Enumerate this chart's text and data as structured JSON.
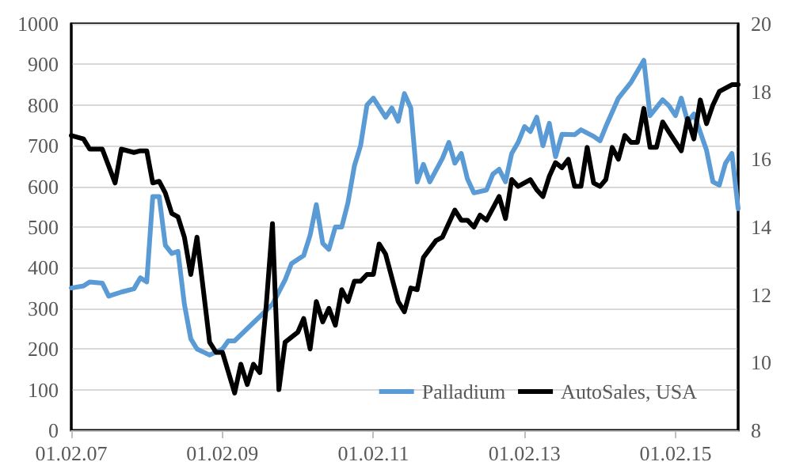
{
  "chart_data": {
    "type": "line",
    "xlim": [
      "2007-02",
      "2015-12"
    ],
    "xticks": [
      {
        "value": "2007-02",
        "label": "01.02.07"
      },
      {
        "value": "2009-02",
        "label": "01.02.09"
      },
      {
        "value": "2011-02",
        "label": "01.02.11"
      },
      {
        "value": "2013-02",
        "label": "01.02.13"
      },
      {
        "value": "2015-02",
        "label": "01.02.15"
      }
    ],
    "ylim": [
      0,
      1000
    ],
    "yticks": [
      0,
      100,
      200,
      300,
      400,
      500,
      600,
      700,
      800,
      900,
      1000
    ],
    "y2lim": [
      8,
      20
    ],
    "y2ticks": [
      8,
      10,
      12,
      14,
      16,
      18,
      20
    ],
    "grid": "y",
    "legend": "bottom right",
    "marker": "none",
    "line_style": "solid",
    "series": [
      {
        "name": "Palladium",
        "color": "#5b9bd5",
        "x": [
          "2007-02",
          "2007-04",
          "2007-05",
          "2007-07",
          "2007-08",
          "2007-10",
          "2007-12",
          "2008-01",
          "2008-02",
          "2008-03",
          "2008-04",
          "2008-05",
          "2008-06",
          "2008-07",
          "2008-08",
          "2008-09",
          "2008-10",
          "2008-12",
          "2009-02",
          "2009-03",
          "2009-04",
          "2009-06",
          "2009-08",
          "2009-10",
          "2009-12",
          "2010-01",
          "2010-03",
          "2010-04",
          "2010-05",
          "2010-06",
          "2010-07",
          "2010-08",
          "2010-09",
          "2010-10",
          "2010-11",
          "2010-12",
          "2011-01",
          "2011-02",
          "2011-04",
          "2011-05",
          "2011-06",
          "2011-07",
          "2011-08",
          "2011-09",
          "2011-10",
          "2011-11",
          "2012-01",
          "2012-02",
          "2012-03",
          "2012-04",
          "2012-05",
          "2012-06",
          "2012-08",
          "2012-09",
          "2012-10",
          "2012-11",
          "2012-12",
          "2013-01",
          "2013-02",
          "2013-03",
          "2013-04",
          "2013-05",
          "2013-06",
          "2013-07",
          "2013-08",
          "2013-10",
          "2013-11",
          "2014-01",
          "2014-02",
          "2014-03",
          "2014-05",
          "2014-07",
          "2014-09",
          "2014-10",
          "2014-12",
          "2015-01",
          "2015-02",
          "2015-03",
          "2015-04",
          "2015-05",
          "2015-07",
          "2015-08",
          "2015-09",
          "2015-10",
          "2015-11",
          "2015-12"
        ],
        "values": [
          350,
          355,
          365,
          362,
          330,
          340,
          348,
          375,
          365,
          575,
          575,
          455,
          435,
          440,
          310,
          225,
          200,
          185,
          200,
          220,
          220,
          250,
          280,
          310,
          370,
          410,
          430,
          480,
          555,
          460,
          445,
          500,
          500,
          560,
          650,
          700,
          800,
          817,
          770,
          793,
          760,
          828,
          793,
          611,
          654,
          611,
          669,
          708,
          657,
          681,
          618,
          584,
          591,
          630,
          642,
          611,
          681,
          708,
          747,
          735,
          770,
          700,
          755,
          673,
          728,
          727,
          739,
          723,
          712,
          747,
          817,
          856,
          910,
          774,
          813,
          798,
          774,
          817,
          759,
          778,
          689,
          611,
          603,
          657,
          681,
          545
        ]
      },
      {
        "name": "AutoSales, USA",
        "color": "#000000",
        "axis": "y2",
        "x": [
          "2007-02",
          "2007-04",
          "2007-05",
          "2007-07",
          "2007-09",
          "2007-10",
          "2007-12",
          "2008-01",
          "2008-02",
          "2008-03",
          "2008-04",
          "2008-05",
          "2008-06",
          "2008-07",
          "2008-08",
          "2008-09",
          "2008-10",
          "2008-12",
          "2009-01",
          "2009-02",
          "2009-04",
          "2009-05",
          "2009-06",
          "2009-07",
          "2009-08",
          "2009-09",
          "2009-10",
          "2009-11",
          "2009-12",
          "2010-02",
          "2010-03",
          "2010-04",
          "2010-05",
          "2010-06",
          "2010-07",
          "2010-08",
          "2010-09",
          "2010-10",
          "2010-11",
          "2010-12",
          "2011-01",
          "2011-02",
          "2011-03",
          "2011-04",
          "2011-06",
          "2011-07",
          "2011-08",
          "2011-09",
          "2011-10",
          "2011-12",
          "2012-01",
          "2012-03",
          "2012-04",
          "2012-05",
          "2012-06",
          "2012-07",
          "2012-08",
          "2012-10",
          "2012-11",
          "2012-12",
          "2013-01",
          "2013-03",
          "2013-04",
          "2013-05",
          "2013-06",
          "2013-07",
          "2013-08",
          "2013-09",
          "2013-10",
          "2013-11",
          "2013-12",
          "2014-01",
          "2014-02",
          "2014-03",
          "2014-04",
          "2014-05",
          "2014-06",
          "2014-07",
          "2014-08",
          "2014-09",
          "2014-10",
          "2014-11",
          "2014-12",
          "2015-01",
          "2015-03",
          "2015-04",
          "2015-05",
          "2015-06",
          "2015-07",
          "2015-08",
          "2015-09",
          "2015-11",
          "2015-12"
        ],
        "values": [
          16.7,
          16.6,
          16.3,
          16.3,
          15.3,
          16.3,
          16.2,
          16.25,
          16.25,
          15.3,
          15.35,
          15.0,
          14.4,
          14.3,
          13.7,
          12.6,
          13.7,
          10.6,
          10.3,
          10.3,
          9.1,
          9.95,
          9.35,
          9.95,
          9.7,
          11.7,
          14.1,
          9.2,
          10.6,
          10.9,
          11.3,
          10.4,
          11.8,
          11.2,
          11.6,
          11.1,
          12.15,
          11.8,
          12.4,
          12.4,
          12.6,
          12.6,
          13.5,
          13.2,
          11.8,
          11.5,
          12.2,
          12.15,
          13.1,
          13.6,
          13.7,
          14.5,
          14.2,
          14.2,
          14.0,
          14.35,
          14.2,
          14.9,
          14.25,
          15.4,
          15.2,
          15.4,
          15.1,
          14.9,
          15.5,
          15.9,
          15.75,
          16.0,
          15.2,
          15.2,
          16.35,
          15.3,
          15.2,
          15.4,
          16.35,
          16.0,
          16.7,
          16.5,
          16.5,
          17.5,
          16.35,
          16.35,
          17.1,
          16.8,
          16.25,
          17.2,
          16.6,
          17.75,
          17.05,
          17.6,
          18.0,
          18.2,
          18.2
        ]
      }
    ]
  }
}
